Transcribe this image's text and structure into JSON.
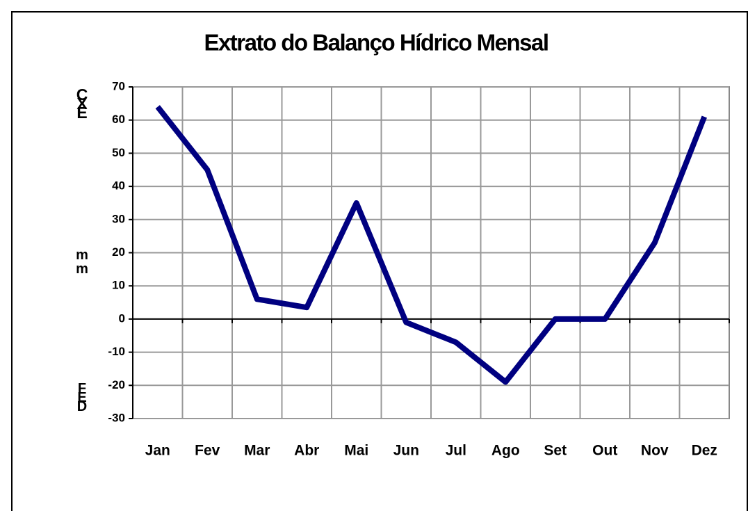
{
  "chart_data": {
    "type": "line",
    "title": "Extrato do Balanço Hídrico Mensal",
    "categories": [
      "Jan",
      "Fev",
      "Mar",
      "Abr",
      "Mai",
      "Jun",
      "Jul",
      "Ago",
      "Set",
      "Out",
      "Nov",
      "Dez"
    ],
    "series": [
      {
        "color": "#000080",
        "values": [
          64,
          45,
          6,
          3.5,
          35,
          -1,
          -7,
          -19,
          0,
          0,
          23,
          61
        ]
      }
    ],
    "ylim": [
      -30,
      70
    ],
    "yticks": [
      -30,
      -20,
      -10,
      0,
      10,
      20,
      30,
      40,
      50,
      60,
      70
    ],
    "annotations": [
      "EXC",
      "mm",
      "DEF"
    ],
    "grid": true
  }
}
